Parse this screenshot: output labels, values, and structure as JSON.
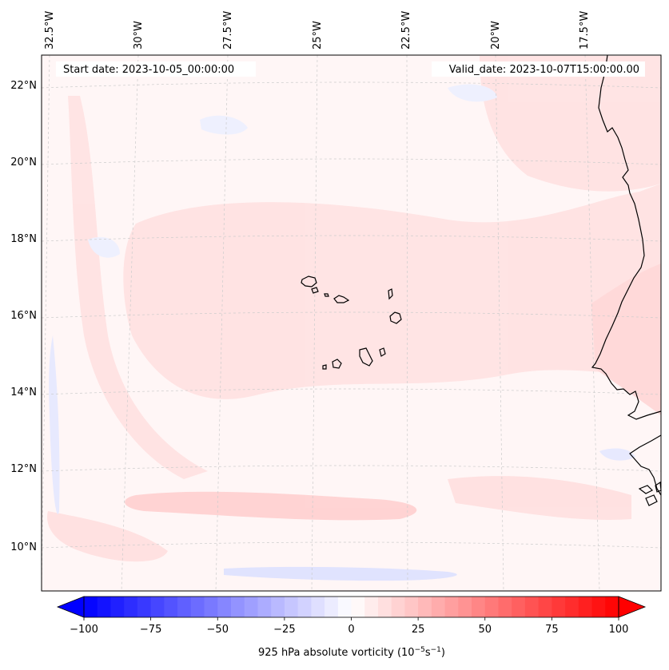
{
  "header": {
    "start_date": "Start date: 2023-10-05_00:00:00",
    "valid_date": "Valid_date: 2023-10-07T15:00:00.00"
  },
  "map": {
    "longitude_labels": [
      "32.5°W",
      "30°W",
      "27.5°W",
      "25°W",
      "22.5°W",
      "20°W",
      "17.5°W"
    ],
    "latitude_labels": [
      "22°N",
      "20°N",
      "18°N",
      "16°N",
      "14°N",
      "12°N",
      "10°N"
    ],
    "field": "925 hPa absolute vorticity",
    "colors": {
      "background": "#fff6f6",
      "light_red": "#ffe3e3",
      "mid_red": "#ffd2d2",
      "light_blue": "#eef0ff",
      "mid_blue": "#dfe2ff",
      "gridline": "#cccccc",
      "coastline": "#000000"
    }
  },
  "colorbar": {
    "label_main": "925 hPa absolute vorticity (10",
    "label_exp1": "−5",
    "label_mid": "s",
    "label_exp2": "−1",
    "label_end": ")",
    "tick_labels": [
      "−100",
      "−75",
      "−50",
      "−25",
      "0",
      "25",
      "50",
      "75",
      "100"
    ],
    "vmin": -100,
    "vmax": 100,
    "step": 5,
    "color_min": "#0000ff",
    "color_mid": "#ffffff",
    "color_max": "#ff0000"
  }
}
